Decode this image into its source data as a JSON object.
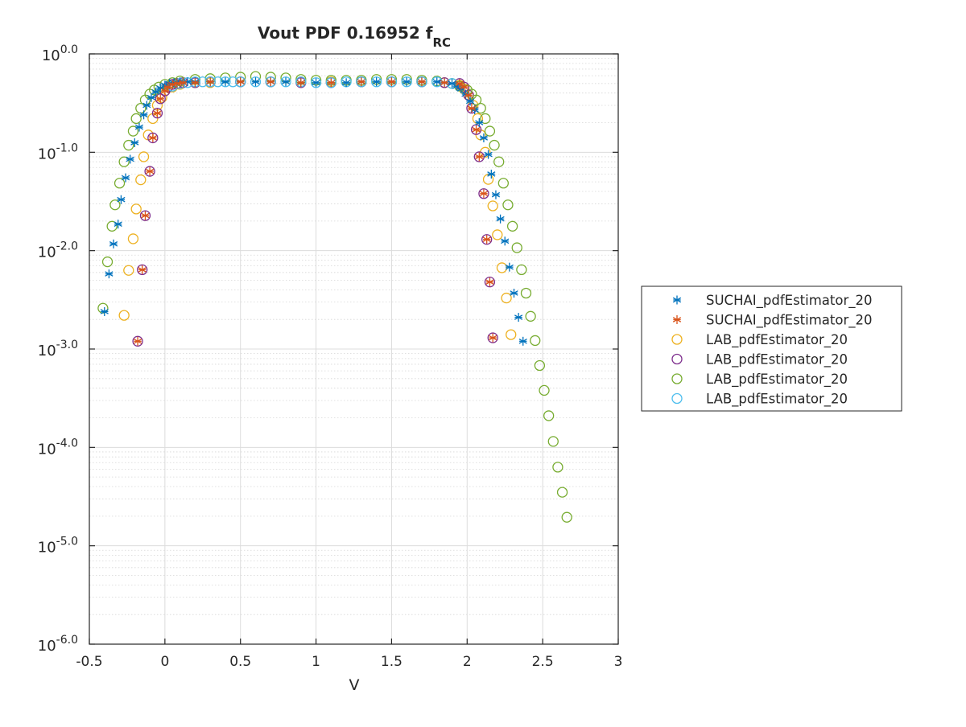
{
  "chart_data": {
    "type": "scatter",
    "title": "Vout PDF 0.16952 f",
    "title_subscript": "RC",
    "xlabel": "V",
    "ylabel": "",
    "xlim": [
      -0.5,
      3
    ],
    "ylim_log10": [
      -6,
      0
    ],
    "yscale": "log",
    "grid": true,
    "minor_grid": true,
    "legend_position": "right",
    "x_ticks": [
      -0.5,
      0,
      0.5,
      1,
      1.5,
      2,
      2.5,
      3
    ],
    "x_tick_labels": [
      "-0.5",
      "0",
      "0.5",
      "1",
      "1.5",
      "2",
      "2.5",
      "3"
    ],
    "y_ticks_log10": [
      0,
      -1,
      -2,
      -3,
      -4,
      -5,
      -6
    ],
    "y_tick_labels": [
      {
        "base": "10",
        "exp": "0.0"
      },
      {
        "base": "10",
        "exp": "-1.0"
      },
      {
        "base": "10",
        "exp": "-2.0"
      },
      {
        "base": "10",
        "exp": "-3.0"
      },
      {
        "base": "10",
        "exp": "-4.0"
      },
      {
        "base": "10",
        "exp": "-5.0"
      },
      {
        "base": "10",
        "exp": "-6.0"
      }
    ],
    "series": [
      {
        "name": "SUCHAI_pdfEstimator_20",
        "marker": "star",
        "color": "#0072BD",
        "points": [
          [
            -0.4,
            0.0024
          ],
          [
            -0.37,
            0.0058
          ],
          [
            -0.34,
            0.0117
          ],
          [
            -0.31,
            0.0186
          ],
          [
            -0.29,
            0.033
          ],
          [
            -0.26,
            0.055
          ],
          [
            -0.23,
            0.085
          ],
          [
            -0.2,
            0.125
          ],
          [
            -0.17,
            0.18
          ],
          [
            -0.14,
            0.24
          ],
          [
            -0.12,
            0.3
          ],
          [
            -0.09,
            0.36
          ],
          [
            -0.06,
            0.41
          ],
          [
            -0.03,
            0.45
          ],
          [
            0.0,
            0.48
          ],
          [
            0.03,
            0.5
          ],
          [
            0.06,
            0.51
          ],
          [
            0.1,
            0.52
          ],
          [
            0.15,
            0.52
          ],
          [
            0.2,
            0.52
          ],
          [
            0.3,
            0.52
          ],
          [
            0.4,
            0.52
          ],
          [
            0.5,
            0.52
          ],
          [
            0.6,
            0.52
          ],
          [
            0.7,
            0.52
          ],
          [
            0.8,
            0.52
          ],
          [
            0.9,
            0.51
          ],
          [
            1.0,
            0.51
          ],
          [
            1.1,
            0.51
          ],
          [
            1.2,
            0.51
          ],
          [
            1.3,
            0.52
          ],
          [
            1.4,
            0.52
          ],
          [
            1.5,
            0.52
          ],
          [
            1.6,
            0.52
          ],
          [
            1.7,
            0.52
          ],
          [
            1.8,
            0.52
          ],
          [
            1.85,
            0.51
          ],
          [
            1.9,
            0.5
          ],
          [
            1.93,
            0.47
          ],
          [
            1.96,
            0.44
          ],
          [
            1.99,
            0.39
          ],
          [
            2.02,
            0.33
          ],
          [
            2.05,
            0.27
          ],
          [
            2.08,
            0.2
          ],
          [
            2.11,
            0.14
          ],
          [
            2.14,
            0.095
          ],
          [
            2.16,
            0.06
          ],
          [
            2.19,
            0.037
          ],
          [
            2.22,
            0.021
          ],
          [
            2.25,
            0.0125
          ],
          [
            2.28,
            0.0068
          ],
          [
            2.31,
            0.0037
          ],
          [
            2.34,
            0.0021
          ],
          [
            2.37,
            0.0012
          ]
        ]
      },
      {
        "name": "SUCHAI_pdfEstimator_20",
        "marker": "star",
        "color": "#D95319",
        "points": [
          [
            -0.18,
            0.0012
          ],
          [
            -0.15,
            0.0064
          ],
          [
            -0.13,
            0.0227
          ],
          [
            -0.1,
            0.064
          ],
          [
            -0.08,
            0.14
          ],
          [
            -0.05,
            0.25
          ],
          [
            -0.03,
            0.35
          ],
          [
            0.0,
            0.42
          ],
          [
            0.02,
            0.46
          ],
          [
            0.05,
            0.49
          ],
          [
            0.08,
            0.5
          ],
          [
            0.12,
            0.51
          ],
          [
            0.2,
            0.51
          ],
          [
            0.3,
            0.52
          ],
          [
            0.5,
            0.52
          ],
          [
            0.7,
            0.52
          ],
          [
            0.9,
            0.51
          ],
          [
            1.1,
            0.51
          ],
          [
            1.3,
            0.52
          ],
          [
            1.5,
            0.52
          ],
          [
            1.7,
            0.52
          ],
          [
            1.85,
            0.51
          ],
          [
            1.95,
            0.5
          ],
          [
            1.98,
            0.46
          ],
          [
            2.01,
            0.38
          ],
          [
            2.03,
            0.28
          ],
          [
            2.06,
            0.17
          ],
          [
            2.08,
            0.09
          ],
          [
            2.11,
            0.038
          ],
          [
            2.13,
            0.013
          ],
          [
            2.15,
            0.0048
          ],
          [
            2.17,
            0.0013
          ]
        ]
      },
      {
        "name": "LAB_pdfEstimator_20",
        "marker": "circle",
        "color": "#EDB120",
        "points": [
          [
            -0.27,
            0.0022
          ],
          [
            -0.24,
            0.0063
          ],
          [
            -0.21,
            0.0132
          ],
          [
            -0.19,
            0.0265
          ],
          [
            -0.16,
            0.0525
          ],
          [
            -0.14,
            0.09
          ],
          [
            -0.11,
            0.15
          ],
          [
            -0.08,
            0.22
          ],
          [
            -0.05,
            0.3
          ],
          [
            -0.02,
            0.36
          ],
          [
            0.0,
            0.42
          ],
          [
            0.05,
            0.46
          ],
          [
            0.1,
            0.49
          ],
          [
            0.2,
            0.51
          ],
          [
            0.3,
            0.51
          ],
          [
            0.5,
            0.52
          ],
          [
            0.7,
            0.52
          ],
          [
            0.9,
            0.52
          ],
          [
            1.1,
            0.52
          ],
          [
            1.3,
            0.52
          ],
          [
            1.5,
            0.52
          ],
          [
            1.7,
            0.52
          ],
          [
            1.85,
            0.51
          ],
          [
            1.95,
            0.48
          ],
          [
            1.98,
            0.44
          ],
          [
            2.01,
            0.38
          ],
          [
            2.04,
            0.3
          ],
          [
            2.07,
            0.22
          ],
          [
            2.09,
            0.15
          ],
          [
            2.12,
            0.1
          ],
          [
            2.14,
            0.053
          ],
          [
            2.17,
            0.0285
          ],
          [
            2.2,
            0.0145
          ],
          [
            2.23,
            0.0067
          ],
          [
            2.26,
            0.0033
          ],
          [
            2.29,
            0.0014
          ]
        ]
      },
      {
        "name": "LAB_pdfEstimator_20",
        "marker": "circle",
        "color": "#7E2F8E",
        "points": [
          [
            -0.18,
            0.0012
          ],
          [
            -0.15,
            0.0064
          ],
          [
            -0.13,
            0.0227
          ],
          [
            -0.1,
            0.064
          ],
          [
            -0.08,
            0.14
          ],
          [
            -0.05,
            0.25
          ],
          [
            -0.03,
            0.35
          ],
          [
            0.0,
            0.42
          ],
          [
            0.02,
            0.46
          ],
          [
            0.05,
            0.49
          ],
          [
            0.08,
            0.5
          ],
          [
            0.12,
            0.51
          ],
          [
            0.2,
            0.51
          ],
          [
            0.3,
            0.52
          ],
          [
            0.5,
            0.52
          ],
          [
            0.7,
            0.52
          ],
          [
            0.9,
            0.51
          ],
          [
            1.1,
            0.51
          ],
          [
            1.3,
            0.52
          ],
          [
            1.5,
            0.52
          ],
          [
            1.7,
            0.52
          ],
          [
            1.85,
            0.51
          ],
          [
            1.95,
            0.5
          ],
          [
            1.98,
            0.46
          ],
          [
            2.01,
            0.38
          ],
          [
            2.03,
            0.28
          ],
          [
            2.06,
            0.17
          ],
          [
            2.08,
            0.09
          ],
          [
            2.11,
            0.038
          ],
          [
            2.13,
            0.013
          ],
          [
            2.15,
            0.0048
          ],
          [
            2.17,
            0.0013
          ]
        ]
      },
      {
        "name": "LAB_pdfEstimator_20",
        "marker": "circle",
        "color": "#77AC30",
        "points": [
          [
            -0.41,
            0.0026
          ],
          [
            -0.38,
            0.0077
          ],
          [
            -0.35,
            0.0177
          ],
          [
            -0.33,
            0.0292
          ],
          [
            -0.3,
            0.0485
          ],
          [
            -0.27,
            0.08
          ],
          [
            -0.24,
            0.118
          ],
          [
            -0.21,
            0.164
          ],
          [
            -0.19,
            0.22
          ],
          [
            -0.16,
            0.28
          ],
          [
            -0.13,
            0.34
          ],
          [
            -0.1,
            0.39
          ],
          [
            -0.07,
            0.43
          ],
          [
            -0.04,
            0.46
          ],
          [
            0.0,
            0.49
          ],
          [
            0.05,
            0.51
          ],
          [
            0.1,
            0.53
          ],
          [
            0.2,
            0.55
          ],
          [
            0.3,
            0.56
          ],
          [
            0.4,
            0.57
          ],
          [
            0.5,
            0.58
          ],
          [
            0.6,
            0.59
          ],
          [
            0.7,
            0.58
          ],
          [
            0.8,
            0.57
          ],
          [
            0.9,
            0.55
          ],
          [
            1.0,
            0.54
          ],
          [
            1.1,
            0.54
          ],
          [
            1.2,
            0.54
          ],
          [
            1.3,
            0.54
          ],
          [
            1.4,
            0.55
          ],
          [
            1.5,
            0.55
          ],
          [
            1.6,
            0.55
          ],
          [
            1.7,
            0.54
          ],
          [
            1.8,
            0.53
          ],
          [
            1.9,
            0.5
          ],
          [
            1.95,
            0.47
          ],
          [
            2.0,
            0.43
          ],
          [
            2.03,
            0.39
          ],
          [
            2.06,
            0.34
          ],
          [
            2.09,
            0.28
          ],
          [
            2.12,
            0.22
          ],
          [
            2.15,
            0.164
          ],
          [
            2.18,
            0.118
          ],
          [
            2.21,
            0.08
          ],
          [
            2.24,
            0.0485
          ],
          [
            2.27,
            0.0292
          ],
          [
            2.3,
            0.0177
          ],
          [
            2.33,
            0.0107
          ],
          [
            2.36,
            0.0064
          ],
          [
            2.39,
            0.0037
          ],
          [
            2.42,
            0.00215
          ],
          [
            2.45,
            0.00122
          ],
          [
            2.48,
            0.00068
          ],
          [
            2.51,
            0.00038
          ],
          [
            2.54,
            0.00021
          ],
          [
            2.57,
            0.000115
          ],
          [
            2.6,
            6.3e-05
          ],
          [
            2.63,
            3.5e-05
          ],
          [
            2.66,
            1.95e-05
          ]
        ]
      },
      {
        "name": "LAB_pdfEstimator_20",
        "marker": "circle",
        "color": "#4DBEEE",
        "points": [
          [
            0.05,
            0.47
          ],
          [
            0.1,
            0.5
          ],
          [
            0.15,
            0.51
          ],
          [
            0.2,
            0.52
          ],
          [
            0.25,
            0.52
          ],
          [
            0.3,
            0.52
          ],
          [
            0.35,
            0.52
          ],
          [
            0.4,
            0.52
          ],
          [
            0.45,
            0.52
          ],
          [
            0.5,
            0.52
          ],
          [
            0.6,
            0.52
          ],
          [
            0.7,
            0.52
          ],
          [
            0.8,
            0.52
          ],
          [
            0.9,
            0.52
          ],
          [
            1.0,
            0.51
          ],
          [
            1.1,
            0.51
          ],
          [
            1.2,
            0.52
          ],
          [
            1.3,
            0.52
          ],
          [
            1.4,
            0.52
          ],
          [
            1.5,
            0.52
          ],
          [
            1.6,
            0.52
          ],
          [
            1.7,
            0.52
          ],
          [
            1.8,
            0.52
          ],
          [
            1.9,
            0.5
          ]
        ]
      }
    ]
  }
}
